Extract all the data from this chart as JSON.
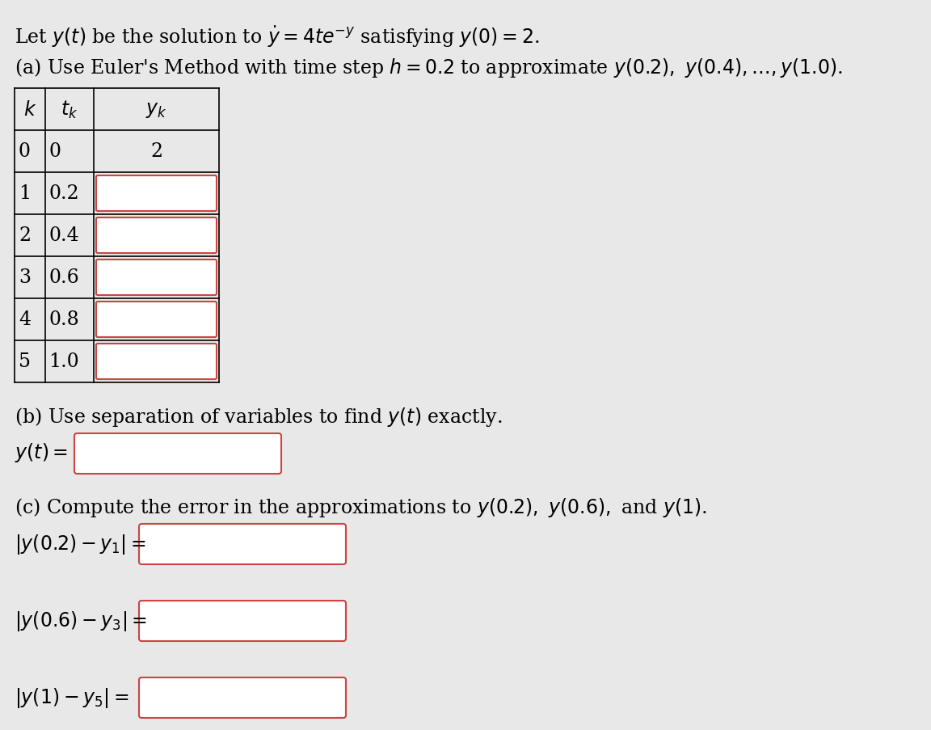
{
  "background_color": "#e8e8e8",
  "title_line1": "Let $y(t)$ be the solution to $\\dot{y} = 4te^{-y}$ satisfying $y(0) = 2$.",
  "part_a_text": "(a) Use Euler's Method with time step $h = 0.2$ to approximate $y(0.2),\\ y(0.4),\\ldots, y(1.0)$.",
  "table_headers": [
    "$k$",
    "$t_k$",
    "$y_k$"
  ],
  "table_rows": [
    [
      "0",
      "0",
      "2"
    ],
    [
      "1",
      "0.2",
      ""
    ],
    [
      "2",
      "0.4",
      ""
    ],
    [
      "3",
      "0.6",
      ""
    ],
    [
      "4",
      "0.8",
      ""
    ],
    [
      "5",
      "1.0",
      ""
    ]
  ],
  "part_b_text": "(b) Use separation of variables to find $y(t)$ exactly.",
  "part_b_label": "$y(t) =$",
  "part_c_text": "(c) Compute the error in the approximations to $y(0.2),\\ y(0.6),$ and $y(1)$.",
  "part_c_labels": [
    "|y(0.2) − y₁| =",
    "|y(0.6) − y₃| =",
    "|y(1) − y₅| ="
  ],
  "input_box_color": "#ffffff",
  "input_border_color": "#cc4444",
  "text_color": "#000000",
  "table_border_color": "#000000",
  "font_size_main": 17,
  "font_size_table": 17
}
